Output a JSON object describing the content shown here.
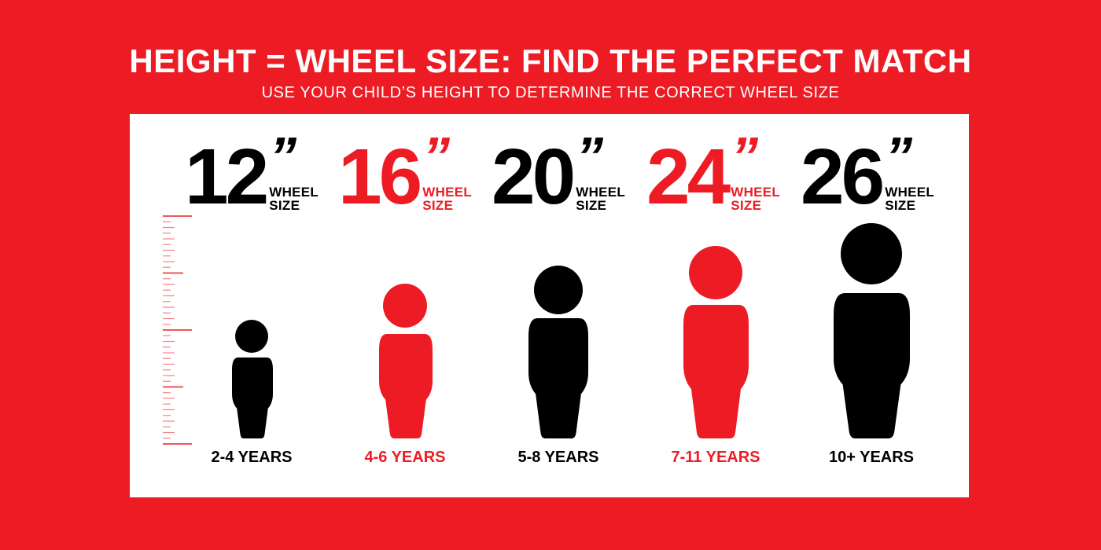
{
  "header": {
    "title": "HEIGHT = WHEEL SIZE: FIND THE PERFECT MATCH",
    "subtitle": "USE YOUR CHILD’S HEIGHT TO DETERMINE THE CORRECT WHEEL SIZE"
  },
  "colors": {
    "accent": "#ED1C24",
    "dark": "#000000",
    "panel": "#FFFFFF"
  },
  "wheel_label": {
    "line1": "WHEEL",
    "line2": "SIZE"
  },
  "sizes": [
    {
      "size": "12",
      "quote": "”",
      "age": "2-4 YEARS",
      "color": "black"
    },
    {
      "size": "16",
      "quote": "”",
      "age": "4-6 YEARS",
      "color": "red"
    },
    {
      "size": "20",
      "quote": "”",
      "age": "5-8 YEARS",
      "color": "black"
    },
    {
      "size": "24",
      "quote": "”",
      "age": "7-11 YEARS",
      "color": "red"
    },
    {
      "size": "26",
      "quote": "”",
      "age": "10+ YEARS",
      "color": "black"
    }
  ],
  "icons": {
    "ruler": "height-ruler-icon",
    "figure": "child-silhouette-icon"
  }
}
